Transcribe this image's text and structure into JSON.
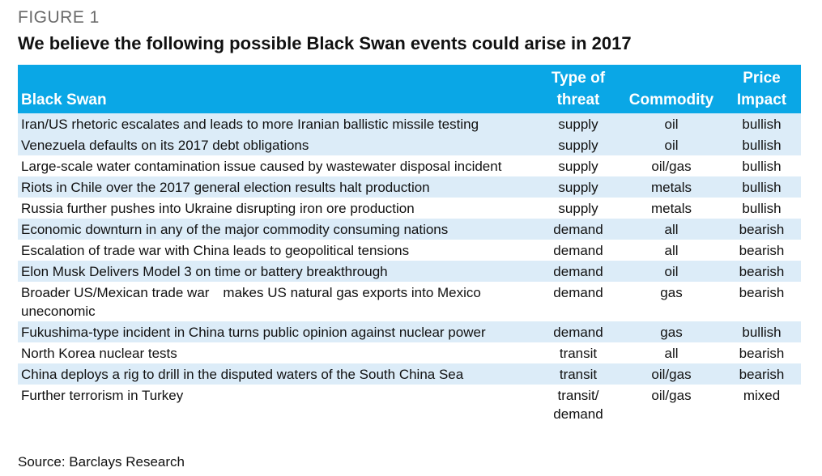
{
  "figure_label": "FIGURE 1",
  "title": "We believe the following possible Black Swan events could arise in 2017",
  "columns": [
    "Black Swan",
    "Type of threat",
    "Commodity",
    "Price Impact"
  ],
  "rows": [
    {
      "event": "Iran/US rhetoric escalates and leads to more Iranian ballistic missile testing",
      "threat": "supply",
      "commodity": "oil",
      "impact": "bullish"
    },
    {
      "event": "Venezuela defaults on its 2017 debt obligations",
      "threat": "supply",
      "commodity": "oil",
      "impact": "bullish"
    },
    {
      "event": "Large-scale water contamination issue caused by wastewater disposal incident",
      "threat": "supply",
      "commodity": "oil/gas",
      "impact": "bullish"
    },
    {
      "event": "Riots in Chile over the 2017 general election results halt production",
      "threat": "supply",
      "commodity": "metals",
      "impact": "bullish"
    },
    {
      "event": "Russia further pushes into Ukraine disrupting iron ore production",
      "threat": "supply",
      "commodity": "metals",
      "impact": "bullish"
    },
    {
      "event": "Economic downturn in any of the major commodity consuming nations",
      "threat": "demand",
      "commodity": "all",
      "impact": "bearish"
    },
    {
      "event": "Escalation of trade war with China leads to geopolitical tensions",
      "threat": "demand",
      "commodity": "all",
      "impact": "bearish"
    },
    {
      "event": "Elon Musk Delivers Model 3 on time or battery breakthrough",
      "threat": "demand",
      "commodity": "oil",
      "impact": "bearish"
    },
    {
      "event": "Broader US/Mexican trade war makes US natural gas exports into Mexico uneconomic",
      "threat": "demand",
      "commodity": "gas",
      "impact": "bearish"
    },
    {
      "event": "Fukushima-type incident in China turns public opinion against nuclear power",
      "threat": "demand",
      "commodity": "gas",
      "impact": "bullish"
    },
    {
      "event": "North Korea nuclear tests",
      "threat": "transit",
      "commodity": "all",
      "impact": "bearish"
    },
    {
      "event": "China deploys a rig to drill in the disputed waters of the South China Sea",
      "threat": "transit",
      "commodity": "oil/gas",
      "impact": "bearish"
    },
    {
      "event": "Further terrorism in Turkey",
      "threat": "transit/ demand",
      "commodity": "oil/gas",
      "impact": "mixed"
    }
  ],
  "source": "Source: Barclays Research",
  "colors": {
    "header_bg": "#0aa7e6",
    "alt_row_bg": "#dcecf8"
  }
}
